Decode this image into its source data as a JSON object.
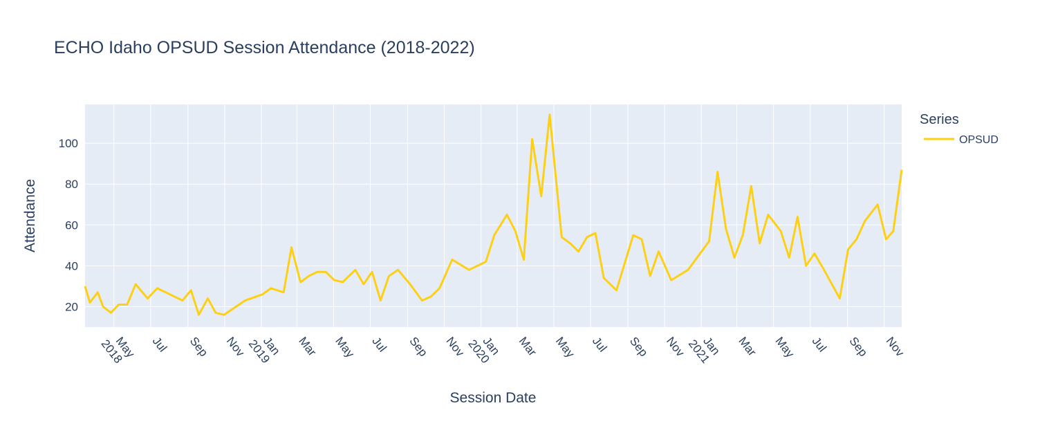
{
  "colors": {
    "series": "#fdd015",
    "plot_bg": "#e5ecf6",
    "grid": "#ffffff",
    "text": "#2a3f5f"
  },
  "chart_data": {
    "type": "line",
    "title": "ECHO Idaho OPSUD Session Attendance (2018-2022)",
    "xlabel": "Session Date",
    "ylabel": "Attendance",
    "xlim": [
      "2018-03-14",
      "2021-11-30"
    ],
    "ylim": [
      10,
      119
    ],
    "y_ticks": [
      20,
      40,
      60,
      80,
      100
    ],
    "x_ticks": [
      {
        "date": "2018-05-01",
        "label": "May",
        "year": "2018"
      },
      {
        "date": "2018-07-01",
        "label": "Jul",
        "year": ""
      },
      {
        "date": "2018-09-01",
        "label": "Sep",
        "year": ""
      },
      {
        "date": "2018-11-01",
        "label": "Nov",
        "year": ""
      },
      {
        "date": "2019-01-01",
        "label": "Jan",
        "year": "2019"
      },
      {
        "date": "2019-03-01",
        "label": "Mar",
        "year": ""
      },
      {
        "date": "2019-05-01",
        "label": "May",
        "year": ""
      },
      {
        "date": "2019-07-01",
        "label": "Jul",
        "year": ""
      },
      {
        "date": "2019-09-01",
        "label": "Sep",
        "year": ""
      },
      {
        "date": "2019-11-01",
        "label": "Nov",
        "year": ""
      },
      {
        "date": "2020-01-01",
        "label": "Jan",
        "year": "2020"
      },
      {
        "date": "2020-03-01",
        "label": "Mar",
        "year": ""
      },
      {
        "date": "2020-05-01",
        "label": "May",
        "year": ""
      },
      {
        "date": "2020-07-01",
        "label": "Jul",
        "year": ""
      },
      {
        "date": "2020-09-01",
        "label": "Sep",
        "year": ""
      },
      {
        "date": "2020-11-01",
        "label": "Nov",
        "year": ""
      },
      {
        "date": "2021-01-01",
        "label": "Jan",
        "year": "2021"
      },
      {
        "date": "2021-03-01",
        "label": "Mar",
        "year": ""
      },
      {
        "date": "2021-05-01",
        "label": "May",
        "year": ""
      },
      {
        "date": "2021-07-01",
        "label": "Jul",
        "year": ""
      },
      {
        "date": "2021-09-01",
        "label": "Sep",
        "year": ""
      },
      {
        "date": "2021-11-01",
        "label": "Nov",
        "year": ""
      }
    ],
    "grid": true,
    "legend": {
      "title": "Series",
      "position": "top-right"
    },
    "series": [
      {
        "name": "OPSUD",
        "points": [
          [
            "2018-03-14",
            30
          ],
          [
            "2018-03-22",
            22
          ],
          [
            "2018-04-04",
            27
          ],
          [
            "2018-04-13",
            20
          ],
          [
            "2018-04-26",
            17
          ],
          [
            "2018-05-09",
            21
          ],
          [
            "2018-05-23",
            21
          ],
          [
            "2018-06-06",
            31
          ],
          [
            "2018-06-26",
            24
          ],
          [
            "2018-07-12",
            29
          ],
          [
            "2018-08-23",
            23
          ],
          [
            "2018-09-06",
            28
          ],
          [
            "2018-09-19",
            16
          ],
          [
            "2018-10-04",
            24
          ],
          [
            "2018-10-17",
            17
          ],
          [
            "2018-10-31",
            16
          ],
          [
            "2018-12-05",
            23
          ],
          [
            "2019-01-03",
            26
          ],
          [
            "2019-01-17",
            29
          ],
          [
            "2019-02-07",
            27
          ],
          [
            "2019-02-20",
            49
          ],
          [
            "2019-03-07",
            32
          ],
          [
            "2019-03-21",
            35
          ],
          [
            "2019-04-04",
            37
          ],
          [
            "2019-04-18",
            37
          ],
          [
            "2019-05-02",
            33
          ],
          [
            "2019-05-16",
            32
          ],
          [
            "2019-06-06",
            38
          ],
          [
            "2019-06-20",
            31
          ],
          [
            "2019-07-04",
            37
          ],
          [
            "2019-07-18",
            23
          ],
          [
            "2019-08-01",
            35
          ],
          [
            "2019-08-16",
            38
          ],
          [
            "2019-09-05",
            31
          ],
          [
            "2019-09-25",
            23
          ],
          [
            "2019-10-10",
            25
          ],
          [
            "2019-10-24",
            29
          ],
          [
            "2019-11-14",
            43
          ],
          [
            "2019-12-12",
            38
          ],
          [
            "2020-01-09",
            42
          ],
          [
            "2020-01-23",
            55
          ],
          [
            "2020-02-13",
            65
          ],
          [
            "2020-02-27",
            57
          ],
          [
            "2020-03-12",
            43
          ],
          [
            "2020-03-26",
            102
          ],
          [
            "2020-04-10",
            74
          ],
          [
            "2020-04-24",
            114
          ],
          [
            "2020-05-14",
            54
          ],
          [
            "2020-05-28",
            51
          ],
          [
            "2020-06-11",
            47
          ],
          [
            "2020-06-25",
            54
          ],
          [
            "2020-07-09",
            56
          ],
          [
            "2020-07-23",
            34
          ],
          [
            "2020-08-13",
            28
          ],
          [
            "2020-09-10",
            55
          ],
          [
            "2020-09-24",
            53
          ],
          [
            "2020-10-08",
            35
          ],
          [
            "2020-10-22",
            47
          ],
          [
            "2020-11-12",
            33
          ],
          [
            "2020-12-10",
            38
          ],
          [
            "2021-01-14",
            52
          ],
          [
            "2021-01-28",
            86
          ],
          [
            "2021-02-11",
            58
          ],
          [
            "2021-02-25",
            44
          ],
          [
            "2021-03-11",
            55
          ],
          [
            "2021-03-25",
            79
          ],
          [
            "2021-04-08",
            51
          ],
          [
            "2021-04-22",
            65
          ],
          [
            "2021-05-13",
            57
          ],
          [
            "2021-05-27",
            44
          ],
          [
            "2021-06-10",
            64
          ],
          [
            "2021-06-24",
            40
          ],
          [
            "2021-07-08",
            46
          ],
          [
            "2021-07-22",
            39
          ],
          [
            "2021-08-19",
            24
          ],
          [
            "2021-09-02",
            48
          ],
          [
            "2021-09-16",
            53
          ],
          [
            "2021-09-30",
            62
          ],
          [
            "2021-10-21",
            70
          ],
          [
            "2021-11-04",
            53
          ],
          [
            "2021-11-16",
            57
          ],
          [
            "2021-11-30",
            87
          ]
        ]
      }
    ]
  }
}
